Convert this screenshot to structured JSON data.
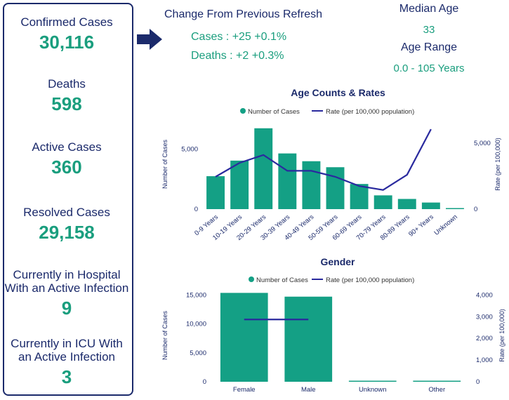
{
  "left_panel": {
    "stats": [
      {
        "label": "Confirmed Cases",
        "value": "30,116"
      },
      {
        "label": "Deaths",
        "value": "598"
      },
      {
        "label": "Active Cases",
        "value": "360"
      },
      {
        "label": "Resolved Cases",
        "value": "29,158"
      },
      {
        "label": "Currently in Hospital\nWith an Active Infection",
        "value": "9"
      },
      {
        "label": "Currently in ICU With\nan Active Infection",
        "value": "3"
      }
    ]
  },
  "change": {
    "title": "Change From Previous Refresh",
    "cases": "Cases : +25 +0.1%",
    "deaths": "Deaths : +2 +0.3%"
  },
  "age_info": {
    "median_label": "Median Age",
    "median_value": "33",
    "range_label": "Age Range",
    "range_value": "0.0 - 105 Years"
  },
  "colors": {
    "navy": "#1b2a6b",
    "teal": "#1a9e7e",
    "bar": "#14a085",
    "line": "#2a2a9e"
  },
  "chart_data": [
    {
      "type": "bar",
      "title": "Age Counts & Rates",
      "legend": [
        "Number of Cases",
        "Rate (per 100,000 population)"
      ],
      "legend_position": "top",
      "ylabel": "Number of Cases",
      "y2label": "Rate (per 100,000)",
      "ylim": [
        0,
        7500
      ],
      "y2lim": [
        0,
        6800
      ],
      "yticks": [
        0,
        5000
      ],
      "yticklabels": [
        "0",
        "5,000"
      ],
      "y2ticks": [
        0,
        5000
      ],
      "y2ticklabels": [
        "0",
        "5,000"
      ],
      "categories": [
        "0-9 Years",
        "10-19 Years",
        "20-29 Years",
        "30-39 Years",
        "40-49 Years",
        "50-59 Years",
        "60-69 Years",
        "70-79 Years",
        "80-89 Years",
        "90+ Years",
        "Unknown"
      ],
      "series": [
        {
          "name": "Number of Cases",
          "kind": "bar",
          "values": [
            2750,
            4050,
            6750,
            4650,
            4000,
            3500,
            2100,
            1150,
            850,
            550,
            50
          ]
        },
        {
          "name": "Rate (per 100,000 population)",
          "kind": "line",
          "axis": "right",
          "values": [
            2450,
            3500,
            4100,
            2900,
            2900,
            2450,
            1750,
            1450,
            2600,
            6050,
            null
          ]
        }
      ]
    },
    {
      "type": "bar",
      "title": "Gender",
      "legend": [
        "Number of Cases",
        "Rate (per 100,000 population)"
      ],
      "legend_position": "top",
      "ylabel": "Number of Cases",
      "y2label": "Rate (per 100,000)",
      "ylim": [
        0,
        16000
      ],
      "y2lim": [
        0,
        4270
      ],
      "yticks": [
        0,
        5000,
        10000,
        15000
      ],
      "yticklabels": [
        "0",
        "5,000",
        "10,000",
        "15,000"
      ],
      "y2ticks": [
        0,
        1000,
        2000,
        3000,
        4000
      ],
      "y2ticklabels": [
        "0",
        "1,000",
        "2,000",
        "3,000",
        "4,000"
      ],
      "categories": [
        "Female",
        "Male",
        "Unknown",
        "Other"
      ],
      "series": [
        {
          "name": "Number of Cases",
          "kind": "bar",
          "values": [
            15350,
            14700,
            50,
            20
          ]
        },
        {
          "name": "Rate (per 100,000 population)",
          "kind": "line",
          "axis": "right",
          "values": [
            2870,
            2870,
            null,
            null
          ]
        }
      ]
    }
  ]
}
